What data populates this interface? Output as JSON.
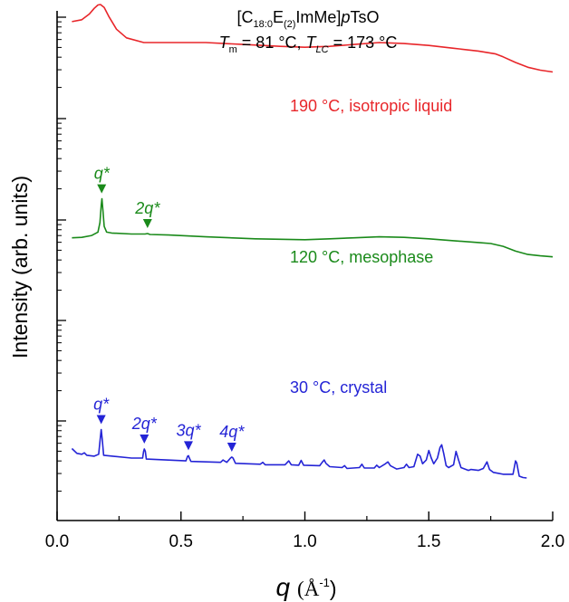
{
  "chart_data": {
    "type": "line",
    "title": {
      "line1_prefix": "[C",
      "line1_sub1": "18:0",
      "line1_mid": "E",
      "line1_sub2": "(2)",
      "line1_mid2": "ImMe]",
      "line1_italic": "p",
      "line1_suffix": "TsO",
      "line2_tm_sym": "T",
      "line2_tm_sub": "m",
      "line2_tm_val": " = 81 °C, ",
      "line2_tlc_sym": "T",
      "line2_tlc_sub": "LC",
      "line2_tlc_val": " = 173 °C"
    },
    "xlabel": {
      "symbol": "q",
      "unit": "(Å",
      "exponent": "-1",
      "close": ")"
    },
    "ylabel": "Intensity (arb. units)",
    "xlim": [
      0.0,
      2.0
    ],
    "x_ticks": [
      "0.0",
      "0.5",
      "1.0",
      "1.5",
      "2.0"
    ],
    "x_tick_values": [
      0.0,
      0.5,
      1.0,
      1.5,
      2.0
    ],
    "y_ticks": "unlabeled",
    "scale": "log (stacked, arbitrary offsets)",
    "grid": false,
    "series": [
      {
        "name": "190 °C, isotropic liquid",
        "color": "#e8262a",
        "peaks": [
          {
            "x": 0.17,
            "label": ""
          }
        ],
        "points": [
          [
            0.06,
            0.82
          ],
          [
            0.1,
            0.84
          ],
          [
            0.13,
            0.9
          ],
          [
            0.15,
            0.96
          ],
          [
            0.165,
            0.995
          ],
          [
            0.175,
            1.0
          ],
          [
            0.19,
            0.97
          ],
          [
            0.21,
            0.87
          ],
          [
            0.24,
            0.74
          ],
          [
            0.28,
            0.65
          ],
          [
            0.35,
            0.6
          ],
          [
            0.45,
            0.6
          ],
          [
            0.6,
            0.6
          ],
          [
            0.75,
            0.58
          ],
          [
            0.9,
            0.56
          ],
          [
            1.0,
            0.55
          ],
          [
            1.1,
            0.56
          ],
          [
            1.2,
            0.58
          ],
          [
            1.3,
            0.6
          ],
          [
            1.4,
            0.59
          ],
          [
            1.5,
            0.57
          ],
          [
            1.6,
            0.54
          ],
          [
            1.7,
            0.51
          ],
          [
            1.77,
            0.48
          ],
          [
            1.8,
            0.45
          ],
          [
            1.85,
            0.39
          ],
          [
            1.9,
            0.34
          ],
          [
            1.95,
            0.31
          ],
          [
            2.0,
            0.29
          ]
        ]
      },
      {
        "name": "120 °C, mesophase",
        "color": "#1a8a1a",
        "peaks": [
          {
            "x": 0.18,
            "label": "q*"
          },
          {
            "x": 0.365,
            "label": "2q*"
          }
        ],
        "points": [
          [
            0.06,
            0.26
          ],
          [
            0.1,
            0.265
          ],
          [
            0.14,
            0.285
          ],
          [
            0.165,
            0.32
          ],
          [
            0.173,
            0.42
          ],
          [
            0.178,
            0.6
          ],
          [
            0.181,
            0.67
          ],
          [
            0.185,
            0.55
          ],
          [
            0.19,
            0.38
          ],
          [
            0.2,
            0.32
          ],
          [
            0.22,
            0.31
          ],
          [
            0.3,
            0.3
          ],
          [
            0.355,
            0.3
          ],
          [
            0.365,
            0.305
          ],
          [
            0.375,
            0.295
          ],
          [
            0.45,
            0.29
          ],
          [
            0.6,
            0.27
          ],
          [
            0.8,
            0.25
          ],
          [
            0.9,
            0.245
          ],
          [
            1.0,
            0.24
          ],
          [
            1.1,
            0.25
          ],
          [
            1.2,
            0.26
          ],
          [
            1.3,
            0.27
          ],
          [
            1.4,
            0.265
          ],
          [
            1.5,
            0.25
          ],
          [
            1.6,
            0.23
          ],
          [
            1.7,
            0.21
          ],
          [
            1.75,
            0.2
          ],
          [
            1.8,
            0.17
          ],
          [
            1.85,
            0.12
          ],
          [
            1.9,
            0.085
          ],
          [
            1.95,
            0.07
          ],
          [
            2.0,
            0.06
          ]
        ]
      },
      {
        "name": "30 °C, crystal",
        "color": "#2424d6",
        "peaks": [
          {
            "x": 0.178,
            "label": "q*"
          },
          {
            "x": 0.352,
            "label": "2q*"
          },
          {
            "x": 0.53,
            "label": "3q*"
          },
          {
            "x": 0.705,
            "label": "4q*"
          }
        ],
        "points": [
          [
            0.06,
            -0.1
          ],
          [
            0.08,
            -0.15
          ],
          [
            0.1,
            -0.16
          ],
          [
            0.11,
            -0.145
          ],
          [
            0.12,
            -0.17
          ],
          [
            0.15,
            -0.18
          ],
          [
            0.168,
            -0.16
          ],
          [
            0.174,
            0.0
          ],
          [
            0.178,
            0.1
          ],
          [
            0.182,
            0.0
          ],
          [
            0.188,
            -0.17
          ],
          [
            0.3,
            -0.2
          ],
          [
            0.345,
            -0.2
          ],
          [
            0.349,
            -0.13
          ],
          [
            0.352,
            -0.105
          ],
          [
            0.356,
            -0.13
          ],
          [
            0.36,
            -0.21
          ],
          [
            0.52,
            -0.23
          ],
          [
            0.527,
            -0.18
          ],
          [
            0.53,
            -0.175
          ],
          [
            0.534,
            -0.2
          ],
          [
            0.54,
            -0.235
          ],
          [
            0.66,
            -0.245
          ],
          [
            0.67,
            -0.22
          ],
          [
            0.675,
            -0.23
          ],
          [
            0.685,
            -0.245
          ],
          [
            0.7,
            -0.2
          ],
          [
            0.705,
            -0.19
          ],
          [
            0.71,
            -0.2
          ],
          [
            0.72,
            -0.255
          ],
          [
            0.82,
            -0.265
          ],
          [
            0.83,
            -0.245
          ],
          [
            0.84,
            -0.27
          ],
          [
            0.92,
            -0.27
          ],
          [
            0.935,
            -0.23
          ],
          [
            0.945,
            -0.27
          ],
          [
            0.975,
            -0.275
          ],
          [
            0.985,
            -0.225
          ],
          [
            0.995,
            -0.275
          ],
          [
            1.06,
            -0.28
          ],
          [
            1.07,
            -0.245
          ],
          [
            1.078,
            -0.22
          ],
          [
            1.085,
            -0.255
          ],
          [
            1.1,
            -0.29
          ],
          [
            1.15,
            -0.3
          ],
          [
            1.16,
            -0.28
          ],
          [
            1.17,
            -0.31
          ],
          [
            1.22,
            -0.3
          ],
          [
            1.23,
            -0.265
          ],
          [
            1.24,
            -0.305
          ],
          [
            1.28,
            -0.305
          ],
          [
            1.29,
            -0.275
          ],
          [
            1.3,
            -0.3
          ],
          [
            1.325,
            -0.26
          ],
          [
            1.335,
            -0.24
          ],
          [
            1.345,
            -0.28
          ],
          [
            1.37,
            -0.315
          ],
          [
            1.4,
            -0.3
          ],
          [
            1.41,
            -0.265
          ],
          [
            1.42,
            -0.3
          ],
          [
            1.44,
            -0.29
          ],
          [
            1.455,
            -0.16
          ],
          [
            1.465,
            -0.18
          ],
          [
            1.475,
            -0.26
          ],
          [
            1.49,
            -0.22
          ],
          [
            1.5,
            -0.12
          ],
          [
            1.51,
            -0.2
          ],
          [
            1.52,
            -0.26
          ],
          [
            1.535,
            -0.2
          ],
          [
            1.545,
            -0.09
          ],
          [
            1.552,
            -0.06
          ],
          [
            1.56,
            -0.15
          ],
          [
            1.57,
            -0.28
          ],
          [
            1.58,
            -0.3
          ],
          [
            1.6,
            -0.27
          ],
          [
            1.61,
            -0.13
          ],
          [
            1.62,
            -0.22
          ],
          [
            1.63,
            -0.3
          ],
          [
            1.66,
            -0.33
          ],
          [
            1.67,
            -0.32
          ],
          [
            1.7,
            -0.33
          ],
          [
            1.72,
            -0.31
          ],
          [
            1.735,
            -0.24
          ],
          [
            1.745,
            -0.32
          ],
          [
            1.76,
            -0.35
          ],
          [
            1.78,
            -0.36
          ],
          [
            1.8,
            -0.37
          ],
          [
            1.84,
            -0.37
          ],
          [
            1.85,
            -0.23
          ],
          [
            1.855,
            -0.25
          ],
          [
            1.865,
            -0.39
          ],
          [
            1.88,
            -0.405
          ],
          [
            1.895,
            -0.41
          ]
        ]
      }
    ]
  }
}
